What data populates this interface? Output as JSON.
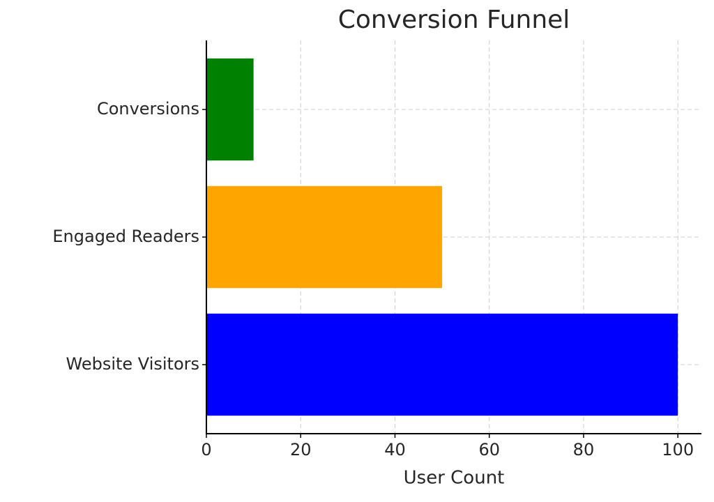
{
  "chart_data": {
    "type": "barh",
    "title": "Conversion Funnel",
    "xlabel": "User Count",
    "categories": [
      "Website Visitors",
      "Engaged Readers",
      "Conversions"
    ],
    "values": [
      100,
      50,
      10
    ],
    "colors": [
      "#0000ff",
      "#ffa500",
      "#008000"
    ],
    "xlim": [
      0,
      105
    ],
    "xticks": [
      0,
      20,
      40,
      60,
      80,
      100
    ],
    "grid": true
  }
}
